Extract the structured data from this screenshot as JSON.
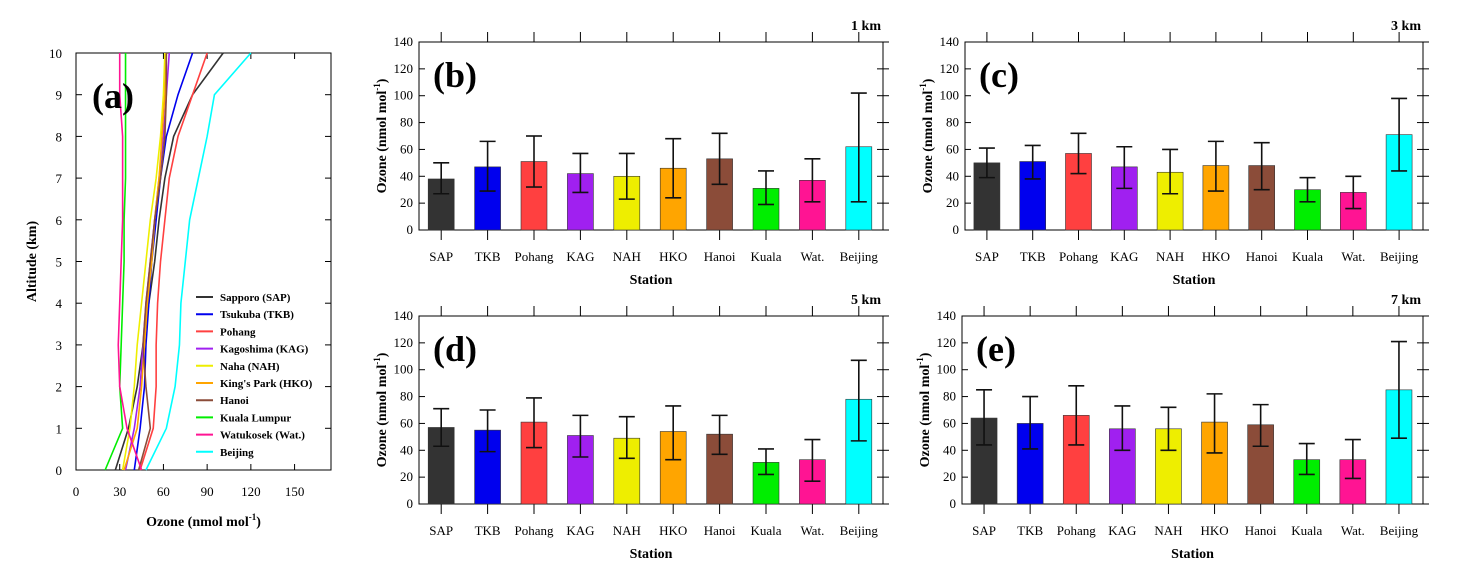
{
  "chart_data": [
    {
      "type": "line",
      "panel_label": "(a)",
      "xlabel": "Ozone (nmol mol",
      "xlabel_sup": "-1",
      "xlabel_end": ")",
      "ylabel": "Altitude (km)",
      "xlim": [
        0,
        175
      ],
      "ylim": [
        0,
        10
      ],
      "xticks": [
        0,
        30,
        60,
        90,
        120,
        150
      ],
      "yticks": [
        0,
        1,
        2,
        3,
        4,
        5,
        6,
        7,
        8,
        9,
        10
      ],
      "legend_position": "bottom-right",
      "altitude": [
        0,
        1,
        2,
        3,
        4,
        5,
        6,
        7,
        8,
        9,
        10
      ],
      "series": [
        {
          "name": "Sapporo (SAP)",
          "color": "#333333",
          "values": [
            27,
            36,
            42,
            46,
            50,
            54,
            57,
            61,
            67,
            80,
            101
          ]
        },
        {
          "name": "Tsukuba (TKB)",
          "color": "#0000ee",
          "values": [
            40,
            44,
            47,
            48,
            50,
            52,
            55,
            58,
            62,
            70,
            80
          ]
        },
        {
          "name": "Pohang",
          "color": "#ff4040",
          "values": [
            44,
            53,
            55,
            55,
            56,
            58,
            61,
            64,
            70,
            80,
            90
          ]
        },
        {
          "name": "Kagoshima (KAG)",
          "color": "#a020f0",
          "values": [
            34,
            40,
            44,
            46,
            48,
            51,
            54,
            57,
            60,
            62,
            64
          ]
        },
        {
          "name": "Naha (NAH)",
          "color": "#eeee00",
          "values": [
            32,
            37,
            40,
            42,
            45,
            48,
            51,
            55,
            58,
            60,
            61
          ]
        },
        {
          "name": "King's Park (HKO)",
          "color": "#ffa500",
          "values": [
            33,
            42,
            45,
            47,
            49,
            52,
            54,
            57,
            59,
            61,
            62
          ]
        },
        {
          "name": "Hanoi",
          "color": "#8b4c39",
          "values": [
            43,
            51,
            48,
            46,
            48,
            51,
            54,
            58,
            61,
            62,
            62
          ]
        },
        {
          "name": "Kuala Lumpur",
          "color": "#00ee00",
          "values": [
            20,
            32,
            30,
            31,
            32,
            33,
            33,
            34,
            34,
            34,
            34
          ]
        },
        {
          "name": "Watukosek (Wat.)",
          "color": "#ff1493",
          "values": [
            45,
            35,
            30,
            29,
            30,
            31,
            32,
            32,
            32,
            30,
            30
          ]
        },
        {
          "name": "Beijing",
          "color": "#00ffff",
          "values": [
            48,
            62,
            68,
            71,
            72,
            75,
            78,
            84,
            90,
            95,
            120
          ]
        }
      ]
    },
    {
      "type": "bar",
      "panel_label": "(b)",
      "title": "1 km",
      "xlabel": "Station",
      "ylabel": "Ozone (nmol mol",
      "ylabel_sup": "-1",
      "ylabel_end": ")",
      "ylim": [
        0,
        140
      ],
      "yticks": [
        0,
        20,
        40,
        60,
        80,
        100,
        120,
        140
      ],
      "categories": [
        "SAP",
        "TKB",
        "Pohang",
        "KAG",
        "NAH",
        "HKO",
        "Hanoi",
        "Kuala",
        "Wat.",
        "Beijing"
      ],
      "values": [
        38,
        47,
        51,
        42,
        40,
        46,
        53,
        31,
        37,
        62
      ],
      "error_upper": [
        50,
        66,
        70,
        57,
        57,
        68,
        72,
        44,
        53,
        102
      ],
      "error_lower": [
        27,
        29,
        32,
        28,
        23,
        24,
        34,
        19,
        21,
        21
      ]
    },
    {
      "type": "bar",
      "panel_label": "(c)",
      "title": "3 km",
      "xlabel": "Station",
      "ylabel": "Ozone (nmol mol",
      "ylabel_sup": "-1",
      "ylabel_end": ")",
      "ylim": [
        0,
        140
      ],
      "yticks": [
        0,
        20,
        40,
        60,
        80,
        100,
        120,
        140
      ],
      "categories": [
        "SAP",
        "TKB",
        "Pohang",
        "KAG",
        "NAH",
        "HKO",
        "Hanoi",
        "Kuala",
        "Wat.",
        "Beijing"
      ],
      "values": [
        50,
        51,
        57,
        47,
        43,
        48,
        48,
        30,
        28,
        71
      ],
      "error_upper": [
        61,
        63,
        72,
        62,
        60,
        66,
        65,
        39,
        40,
        98
      ],
      "error_lower": [
        39,
        38,
        42,
        31,
        27,
        29,
        30,
        21,
        16,
        44
      ]
    },
    {
      "type": "bar",
      "panel_label": "(d)",
      "title": "5 km",
      "xlabel": "Station",
      "ylabel": "Ozone (nmol mol",
      "ylabel_sup": "-1",
      "ylabel_end": ")",
      "ylim": [
        0,
        140
      ],
      "yticks": [
        0,
        20,
        40,
        60,
        80,
        100,
        120,
        140
      ],
      "categories": [
        "SAP",
        "TKB",
        "Pohang",
        "KAG",
        "NAH",
        "HKO",
        "Hanoi",
        "Kuala",
        "Wat.",
        "Beijing"
      ],
      "values": [
        57,
        55,
        61,
        51,
        49,
        54,
        52,
        31,
        33,
        78
      ],
      "error_upper": [
        71,
        70,
        79,
        66,
        65,
        73,
        66,
        41,
        48,
        107
      ],
      "error_lower": [
        43,
        39,
        42,
        35,
        34,
        33,
        37,
        22,
        17,
        47
      ]
    },
    {
      "type": "bar",
      "panel_label": "(e)",
      "title": "7 km",
      "xlabel": "Station",
      "ylabel": "Ozone (nmol mol",
      "ylabel_sup": "-1",
      "ylabel_end": ")",
      "ylim": [
        0,
        140
      ],
      "yticks": [
        0,
        20,
        40,
        60,
        80,
        100,
        120,
        140
      ],
      "categories": [
        "SAP",
        "TKB",
        "Pohang",
        "KAG",
        "NAH",
        "HKO",
        "Hanoi",
        "Kuala",
        "Wat.",
        "Beijing"
      ],
      "values": [
        64,
        60,
        66,
        56,
        56,
        61,
        59,
        33,
        33,
        85
      ],
      "error_upper": [
        85,
        80,
        88,
        73,
        72,
        82,
        74,
        45,
        48,
        121
      ],
      "error_lower": [
        44,
        41,
        44,
        40,
        40,
        38,
        43,
        22,
        19,
        49
      ]
    }
  ],
  "bar_colors": [
    "#333333",
    "#0000ee",
    "#ff4040",
    "#a020f0",
    "#eeee00",
    "#ffa500",
    "#8b4c39",
    "#00ee00",
    "#ff1493",
    "#00ffff"
  ]
}
